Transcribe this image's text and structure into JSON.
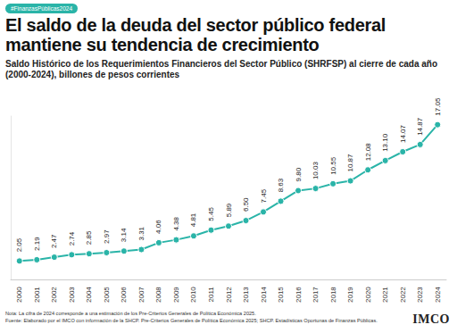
{
  "header": {
    "tag": "#FinanzasPúblicas2024"
  },
  "chart_data": {
    "type": "line",
    "title": "El saldo de la deuda del sector público federal mantiene su tendencia de crecimiento",
    "subtitle": "Saldo Histórico de los Requerimientos Financieros del Sector Público (SHRFSP) al cierre de cada año (2000-2024), billones de pesos corrientes",
    "categories": [
      "2000",
      "2001",
      "2002",
      "2003",
      "2004",
      "2005",
      "2006",
      "2007",
      "2008",
      "2009",
      "2010",
      "2011",
      "2012",
      "2013",
      "2014",
      "2015",
      "2016",
      "2017",
      "2018",
      "2019",
      "2020",
      "2021",
      "2022",
      "2023",
      "2024"
    ],
    "values": [
      2.05,
      2.19,
      2.47,
      2.74,
      2.85,
      2.97,
      3.14,
      3.31,
      4.06,
      4.38,
      4.81,
      5.45,
      5.89,
      6.5,
      7.45,
      8.63,
      9.8,
      10.03,
      10.55,
      10.87,
      12.08,
      13.1,
      14.07,
      14.87,
      17.05
    ],
    "value_labels": [
      "2.05",
      "2.19",
      "2.47",
      "2.74",
      "2.85",
      "2.97",
      "3.14",
      "3.31",
      "4.06",
      "4.38",
      "4.81",
      "5.45",
      "5.89",
      "6.50",
      "7.45",
      "8.63",
      "9.80",
      "10.03",
      "10.55",
      "10.87",
      "12.08",
      "13.10",
      "14.07",
      "14.87",
      "17.05"
    ],
    "color": "#2ab4a8",
    "marker": "circle",
    "line_style": "solid",
    "data_labels": true,
    "tick_labels": "x",
    "grid": false,
    "ylim": [
      0,
      18
    ]
  },
  "footer": {
    "note": "Nota: La cifra de 2024 corresponde a una estimación de los Pre-Criterios Generales de Política Económica 2025.",
    "source": "Fuente: Elaborado por el IMCO con información de la SHCP. Pre-Criterios Generales de Política Económica 2025; SHCP. Estadísticas Oportunas de Finanzas Públicas.",
    "logo": "IMCO"
  }
}
